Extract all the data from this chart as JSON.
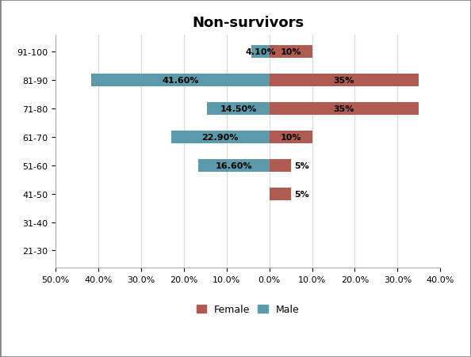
{
  "title": "Non-survivors",
  "age_groups": [
    "21-30",
    "31-40",
    "41-50",
    "51-60",
    "61-70",
    "71-80",
    "81-90",
    "91-100"
  ],
  "male_values": [
    0,
    0,
    0,
    16.6,
    22.9,
    14.5,
    41.6,
    4.1
  ],
  "female_values": [
    0,
    0,
    5,
    5,
    10,
    35,
    35,
    10
  ],
  "male_labels": [
    "",
    "",
    "",
    "16.60%",
    "22.90%",
    "14.50%",
    "41.60%",
    "4.10%"
  ],
  "female_labels": [
    "",
    "",
    "5%",
    "5%",
    "10%",
    "35%",
    "35%",
    "10%"
  ],
  "male_color": "#5b9aaa",
  "female_color": "#b05b52",
  "xlim_left": 50,
  "xlim_right": 40,
  "xtick_positions": [
    -50,
    -40,
    -30,
    -20,
    -10,
    0,
    10,
    20,
    30,
    40
  ],
  "xtick_labels": [
    "50.0%",
    "40.0%",
    "30.0%",
    "20.0%",
    "10.0%",
    "0.0%",
    "10.0%",
    "20.0%",
    "30.0%",
    "40.0%"
  ],
  "background_color": "#ffffff",
  "outer_border_color": "#888888",
  "grid_color": "#d9d9d9",
  "title_fontsize": 13,
  "label_fontsize": 8,
  "tick_fontsize": 8,
  "legend_fontsize": 9,
  "bar_height": 0.45
}
